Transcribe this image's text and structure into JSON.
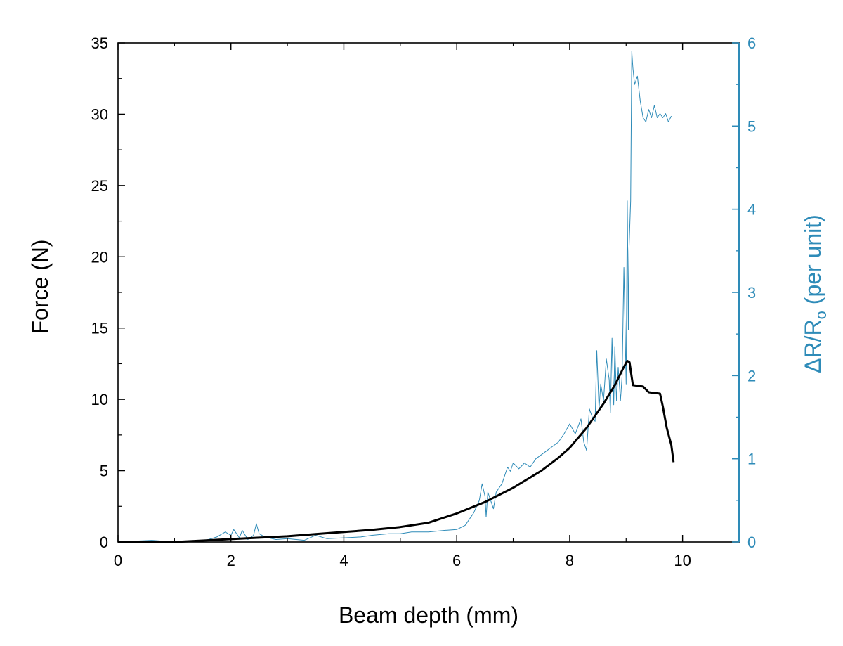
{
  "chart_data": {
    "type": "line",
    "xlabel": "Beam depth (mm)",
    "ylabel": "Force (N)",
    "y2label": {
      "main": "ΔR/R",
      "sub": "o",
      "rest": " (per unit)"
    },
    "xlim": [
      0,
      11
    ],
    "ylim": [
      0,
      35
    ],
    "y2lim": [
      0,
      6
    ],
    "x_ticks": [
      "0",
      "2",
      "4",
      "6",
      "8",
      "10"
    ],
    "y_ticks": [
      "0",
      "5",
      "10",
      "15",
      "20",
      "25",
      "30",
      "35"
    ],
    "y2_ticks": [
      "0",
      "1",
      "2",
      "3",
      "4",
      "5",
      "6"
    ],
    "grid": false,
    "colors": {
      "force": "#000000",
      "resistance": "#2e8bb8"
    },
    "series": [
      {
        "axis": "left",
        "x": [
          0,
          1.0,
          1.5,
          2.0,
          2.5,
          3.0,
          3.5,
          4.0,
          4.5,
          5.0,
          5.5,
          6.0,
          6.5,
          7.0,
          7.5,
          7.8,
          8.0,
          8.3,
          8.6,
          8.8,
          8.95,
          9.02,
          9.06,
          9.12,
          9.3,
          9.4,
          9.6,
          9.65,
          9.72,
          9.8,
          9.84
        ],
        "y": [
          0,
          0,
          0.1,
          0.2,
          0.3,
          0.4,
          0.55,
          0.7,
          0.85,
          1.05,
          1.35,
          2.0,
          2.8,
          3.8,
          5.0,
          5.9,
          6.6,
          8.0,
          9.7,
          11.0,
          12.2,
          12.7,
          12.6,
          11.0,
          10.9,
          10.5,
          10.4,
          9.5,
          8.0,
          6.8,
          5.6
        ]
      },
      {
        "axis": "right",
        "x": [
          0,
          0.3,
          0.6,
          1.0,
          1.4,
          1.6,
          1.75,
          1.9,
          2.0,
          2.05,
          2.15,
          2.2,
          2.3,
          2.4,
          2.45,
          2.5,
          2.6,
          2.8,
          3.0,
          3.3,
          3.5,
          3.7,
          4.0,
          4.3,
          4.5,
          4.8,
          5.0,
          5.2,
          5.5,
          5.8,
          6.0,
          6.15,
          6.3,
          6.4,
          6.45,
          6.5,
          6.52,
          6.55,
          6.6,
          6.65,
          6.7,
          6.8,
          6.9,
          6.95,
          7.0,
          7.1,
          7.2,
          7.3,
          7.4,
          7.5,
          7.6,
          7.7,
          7.8,
          7.9,
          8.0,
          8.1,
          8.2,
          8.25,
          8.3,
          8.35,
          8.4,
          8.45,
          8.48,
          8.52,
          8.55,
          8.6,
          8.65,
          8.7,
          8.72,
          8.75,
          8.78,
          8.8,
          8.83,
          8.86,
          8.9,
          8.93,
          8.96,
          9.0,
          9.02,
          9.04,
          9.05,
          9.07,
          9.08,
          9.1,
          9.12,
          9.15,
          9.2,
          9.25,
          9.3,
          9.35,
          9.4,
          9.45,
          9.5,
          9.55,
          9.6,
          9.65,
          9.7,
          9.75,
          9.8
        ],
        "y": [
          0,
          0.01,
          0.02,
          0.0,
          0.01,
          0.03,
          0.06,
          0.12,
          0.08,
          0.15,
          0.05,
          0.14,
          0.03,
          0.08,
          0.22,
          0.1,
          0.06,
          0.03,
          0.04,
          0.02,
          0.08,
          0.04,
          0.05,
          0.06,
          0.08,
          0.1,
          0.1,
          0.12,
          0.12,
          0.14,
          0.15,
          0.2,
          0.35,
          0.5,
          0.7,
          0.55,
          0.3,
          0.6,
          0.5,
          0.4,
          0.6,
          0.7,
          0.9,
          0.85,
          0.95,
          0.88,
          0.95,
          0.9,
          1.0,
          1.05,
          1.1,
          1.15,
          1.2,
          1.3,
          1.42,
          1.3,
          1.48,
          1.2,
          1.1,
          1.6,
          1.5,
          1.45,
          2.3,
          1.6,
          1.9,
          1.7,
          2.2,
          1.95,
          1.55,
          2.45,
          1.65,
          2.35,
          1.7,
          2.1,
          1.7,
          2.0,
          3.3,
          1.9,
          4.1,
          2.55,
          3.5,
          3.9,
          4.1,
          5.9,
          5.7,
          5.5,
          5.6,
          5.3,
          5.1,
          5.05,
          5.2,
          5.1,
          5.25,
          5.1,
          5.15,
          5.1,
          5.15,
          5.05,
          5.12
        ]
      }
    ]
  }
}
